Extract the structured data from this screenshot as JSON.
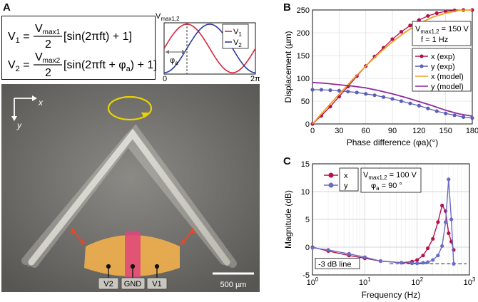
{
  "panels": {
    "a": {
      "letter": "A",
      "eq1": {
        "lhs": "V",
        "lhs_sub": "1",
        "frac_top": "V",
        "frac_top_sub": "max1",
        "frac_bottom": "2",
        "rhs": "[sin(2πft) + 1]"
      },
      "eq2": {
        "lhs": "V",
        "lhs_sub": "2",
        "frac_top": "V",
        "frac_top_sub": "max2",
        "frac_bottom": "2",
        "rhs": "[sin(2πft + φ",
        "rhs_sub": "a",
        "rhs_end": ") + 1]"
      },
      "signal_plot": {
        "ylabel": "V",
        "ylabel_sub": "max1,2",
        "x_start": "0",
        "x_end": "2π",
        "phase_label": "φ",
        "phase_label_sub": "a",
        "legend": [
          {
            "name": "V",
            "sub": "1",
            "color": "#d9263f"
          },
          {
            "name": "V",
            "sub": "2",
            "color": "#2b3b9e"
          }
        ]
      },
      "image": {
        "axis_x": "x",
        "axis_y": "y",
        "electrodes": [
          "V2",
          "GND",
          "V1"
        ],
        "scale_bar": "500 µm",
        "colors": {
          "electrode_fill": "#f2b04c",
          "ground_fill": "#e0457a",
          "motion_arrow": "#e8d400",
          "bend_arrow": "#e04a2f"
        }
      }
    },
    "b": {
      "letter": "B",
      "info": {
        "line1_pre": "V",
        "line1_sub": "max1,2",
        "line1_post": " = 150 V",
        "line2": "f   = 1 Hz"
      }
    },
    "c": {
      "letter": "C",
      "info": {
        "line1_pre": "V",
        "line1_sub": "max1,2",
        "line1_post": " = 100 V",
        "line2_pre": "φ",
        "line2_sub": "a",
        "line2_post": " =  90 °"
      },
      "annotation": "-3 dB line"
    }
  },
  "chart_data": [
    {
      "type": "line",
      "panel": "B",
      "title": "",
      "xlabel": "Phase difference (φa)(°)",
      "ylabel": "Displacement (µm)",
      "xlim": [
        0,
        180
      ],
      "ylim": [
        0,
        250
      ],
      "xticks": [
        0,
        30,
        60,
        90,
        120,
        150,
        180
      ],
      "yticks": [
        0,
        50,
        100,
        150,
        200,
        250
      ],
      "grid": true,
      "legend_position": "right",
      "series": [
        {
          "name": "x (exp)",
          "color": "#b3124e",
          "marker": true,
          "x": [
            0,
            10,
            20,
            30,
            40,
            50,
            60,
            70,
            80,
            90,
            100,
            110,
            120,
            130,
            140,
            150,
            160,
            170,
            180
          ],
          "y": [
            0,
            18,
            38,
            60,
            82,
            105,
            127,
            148,
            167,
            186,
            202,
            216,
            228,
            237,
            243,
            247,
            249,
            250,
            250
          ]
        },
        {
          "name": "y (exp)",
          "color": "#5c5fb8",
          "marker": true,
          "x": [
            0,
            10,
            20,
            30,
            40,
            50,
            60,
            70,
            80,
            90,
            100,
            110,
            120,
            130,
            140,
            150,
            160,
            170,
            180
          ],
          "y": [
            75,
            75,
            74,
            73,
            71,
            69,
            66,
            63,
            59,
            55,
            50,
            45,
            40,
            34,
            28,
            23,
            19,
            15,
            13
          ]
        },
        {
          "name": "x (model)",
          "color": "#f0a020",
          "marker": false,
          "x": [
            0,
            15,
            30,
            45,
            60,
            75,
            90,
            105,
            120,
            135,
            150,
            165,
            180
          ],
          "y": [
            0,
            33,
            65,
            97,
            127,
            155,
            180,
            202,
            220,
            234,
            243,
            249,
            250
          ]
        },
        {
          "name": "y (model)",
          "color": "#8e2aa0",
          "marker": false,
          "x": [
            0,
            15,
            30,
            45,
            60,
            75,
            90,
            105,
            120,
            135,
            150,
            165,
            180
          ],
          "y": [
            91,
            89,
            86,
            83,
            79,
            73,
            66,
            58,
            49,
            40,
            30,
            22,
            17
          ]
        }
      ]
    },
    {
      "type": "line",
      "panel": "C",
      "title": "",
      "xlabel": "Frequency (Hz)",
      "ylabel": "Magnitude (dB)",
      "xscale": "log",
      "xlim": [
        1,
        1000
      ],
      "ylim": [
        -5,
        15
      ],
      "xticks": [
        "10^0",
        "10^1",
        "10^2",
        "10^3"
      ],
      "yticks": [
        -5,
        0,
        5,
        10,
        15
      ],
      "grid": true,
      "legend_position": "top",
      "reference_line": {
        "y": -3,
        "label": "-3 dB line"
      },
      "series": [
        {
          "name": "x",
          "color": "#b3124e",
          "marker": true,
          "x": [
            1,
            2,
            5,
            10,
            20,
            50,
            80,
            100,
            130,
            160,
            200,
            250,
            300,
            350,
            400,
            450,
            500
          ],
          "y": [
            0,
            -0.7,
            -1.5,
            -2,
            -2.5,
            -2.8,
            -2.6,
            -2.3,
            -1.5,
            -0.2,
            1.5,
            4.5,
            7.5,
            6.5,
            2.5,
            1,
            -0.5
          ]
        },
        {
          "name": "y",
          "color": "#6a6cc4",
          "marker": true,
          "x": [
            1,
            2,
            5,
            10,
            20,
            50,
            80,
            100,
            130,
            160,
            200,
            250,
            300,
            350,
            400,
            450,
            500
          ],
          "y": [
            -0.1,
            -0.5,
            -1.2,
            -1.8,
            -2.5,
            -2.8,
            -2.9,
            -2.9,
            -2.8,
            -2.7,
            -2.3,
            -1.5,
            0.2,
            4.5,
            12.2,
            5.0,
            -3.0
          ]
        }
      ]
    }
  ]
}
